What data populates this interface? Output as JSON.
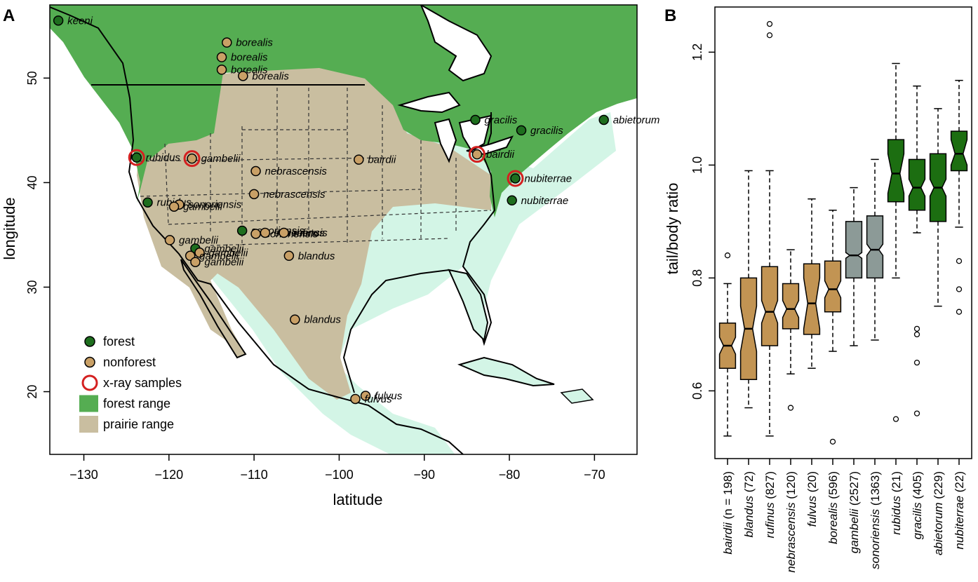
{
  "panels": {
    "a": "A",
    "b": "B"
  },
  "map": {
    "xlabel": "latitude",
    "ylabel": "longitude",
    "x_ticks": [
      -130,
      -120,
      -110,
      -100,
      -90,
      -80,
      -70
    ],
    "x_tick_labels": [
      "−130",
      "−120",
      "−110",
      "−100",
      "−90",
      "−80",
      "−70"
    ],
    "y_ticks": [
      20,
      30,
      40,
      50
    ],
    "xlim": [
      -134,
      -65
    ],
    "ylim": [
      14,
      57
    ],
    "legend": [
      {
        "label": "forest",
        "kind": "forest-dot"
      },
      {
        "label": "nonforest",
        "kind": "nonforest-dot"
      },
      {
        "label": "x-ray samples",
        "kind": "xray-ring"
      },
      {
        "label": "forest range",
        "kind": "forest-range"
      },
      {
        "label": "prairie range",
        "kind": "prairie-range"
      }
    ],
    "colors": {
      "forest_dot": "#1e6e1e",
      "nonforest_dot": "#c9a066",
      "xray": "#d42020",
      "forest_range": "#55ad52",
      "prairie_range": "#c9bea0",
      "other_range": "#d3f5e6"
    },
    "sites": [
      {
        "label": "keeni",
        "lon": -133,
        "lat": 55.5,
        "type": "forest",
        "xray": false
      },
      {
        "label": "borealis",
        "lon": -113.2,
        "lat": 53.4,
        "type": "nonforest",
        "xray": false
      },
      {
        "label": "borealis",
        "lon": -113.8,
        "lat": 52.0,
        "type": "nonforest",
        "xray": false
      },
      {
        "label": "borealis",
        "lon": -113.8,
        "lat": 50.8,
        "type": "nonforest",
        "xray": false
      },
      {
        "label": "borealis",
        "lon": -111.3,
        "lat": 50.2,
        "type": "nonforest",
        "xray": false
      },
      {
        "label": "gracilis",
        "lon": -84.0,
        "lat": 46.0,
        "type": "forest",
        "xray": false
      },
      {
        "label": "gracilis",
        "lon": -78.6,
        "lat": 45.0,
        "type": "forest",
        "xray": false
      },
      {
        "label": "abietorum",
        "lon": -68.9,
        "lat": 46.0,
        "type": "forest",
        "xray": false
      },
      {
        "label": "rubidus",
        "lon": -123.8,
        "lat": 42.4,
        "type": "forest",
        "xray": true
      },
      {
        "label": "gambelii",
        "lon": -117.3,
        "lat": 42.3,
        "type": "nonforest",
        "xray": true
      },
      {
        "label": "bairdii",
        "lon": -97.7,
        "lat": 42.2,
        "type": "nonforest",
        "xray": false
      },
      {
        "label": "bairdii",
        "lon": -83.8,
        "lat": 42.7,
        "type": "nonforest",
        "xray": true
      },
      {
        "label": "nebrascensis",
        "lon": -109.8,
        "lat": 41.1,
        "type": "nonforest",
        "xray": false
      },
      {
        "label": "nebrascensis",
        "lon": -110.0,
        "lat": 38.9,
        "type": "nonforest",
        "xray": false
      },
      {
        "label": "nubiterrae",
        "lon": -79.3,
        "lat": 40.4,
        "type": "forest",
        "xray": true
      },
      {
        "label": "nubiterrae",
        "lon": -79.7,
        "lat": 38.3,
        "type": "forest",
        "xray": false
      },
      {
        "label": "rubidus",
        "lon": -122.5,
        "lat": 38.1,
        "type": "forest",
        "xray": false
      },
      {
        "label": "sonoriensis",
        "lon": -118.8,
        "lat": 37.9,
        "type": "nonforest",
        "xray": false
      },
      {
        "label": "gambelii",
        "lon": -119.4,
        "lat": 37.7,
        "type": "nonforest",
        "xray": false
      },
      {
        "label": "sonoriensis",
        "lon": -111.4,
        "lat": 35.4,
        "type": "forest",
        "xray": false
      },
      {
        "label": "sonoriensis",
        "lon": -109.8,
        "lat": 35.1,
        "type": "nonforest",
        "xray": false
      },
      {
        "label": "sonoriensis",
        "lon": -108.7,
        "lat": 35.2,
        "type": "nonforest",
        "xray": false
      },
      {
        "label": "rufinus",
        "lon": -106.5,
        "lat": 35.2,
        "type": "nonforest",
        "xray": false
      },
      {
        "label": "gambelii",
        "lon": -119.9,
        "lat": 34.5,
        "type": "nonforest",
        "xray": false
      },
      {
        "label": "gambelii",
        "lon": -116.9,
        "lat": 33.7,
        "type": "forest",
        "xray": false
      },
      {
        "label": "gambelii",
        "lon": -116.4,
        "lat": 33.3,
        "type": "nonforest",
        "xray": false
      },
      {
        "label": "gambelii",
        "lon": -117.5,
        "lat": 33.0,
        "type": "nonforest",
        "xray": false
      },
      {
        "label": "gambelii",
        "lon": -116.9,
        "lat": 32.4,
        "type": "nonforest",
        "xray": false
      },
      {
        "label": "blandus",
        "lon": -105.9,
        "lat": 33.0,
        "type": "nonforest",
        "xray": false
      },
      {
        "label": "blandus",
        "lon": -105.2,
        "lat": 26.9,
        "type": "nonforest",
        "xray": false
      },
      {
        "label": "fulvus",
        "lon": -96.9,
        "lat": 19.6,
        "type": "nonforest",
        "xray": false
      },
      {
        "label": "fulvus",
        "lon": -98.1,
        "lat": 19.3,
        "type": "nonforest",
        "xray": false
      }
    ]
  },
  "chart_data": {
    "type": "box",
    "ylabel": "tail/body ratio",
    "ylim": [
      0.48,
      1.28
    ],
    "y_ticks": [
      0.6,
      0.8,
      1.0,
      1.2
    ],
    "y_tick_labels": [
      "0.6",
      "0.8",
      "1.0",
      "1.2"
    ],
    "notched": true,
    "colors": {
      "nonforest": "#c29453",
      "intermediate": "#8c9a97",
      "forest": "#1c6e11"
    },
    "categories": [
      {
        "name": "bairdii",
        "n_text": "(n = 198)",
        "group": "nonforest",
        "lower_whisker": 0.52,
        "q1": 0.64,
        "median": 0.68,
        "q3": 0.72,
        "upper_whisker": 0.79,
        "notch_low": 0.665,
        "notch_high": 0.695,
        "outliers": [
          0.84
        ]
      },
      {
        "name": "blandus",
        "n_text": "(72)",
        "group": "nonforest",
        "lower_whisker": 0.57,
        "q1": 0.62,
        "median": 0.71,
        "q3": 0.8,
        "upper_whisker": 0.99,
        "notch_low": 0.67,
        "notch_high": 0.75,
        "outliers": []
      },
      {
        "name": "rufinus",
        "n_text": "(827)",
        "group": "nonforest",
        "lower_whisker": 0.52,
        "q1": 0.68,
        "median": 0.74,
        "q3": 0.82,
        "upper_whisker": 0.99,
        "notch_low": 0.72,
        "notch_high": 0.76,
        "outliers": [
          1.23,
          1.25
        ]
      },
      {
        "name": "nebrascensis",
        "n_text": "(120)",
        "group": "nonforest",
        "lower_whisker": 0.63,
        "q1": 0.71,
        "median": 0.745,
        "q3": 0.79,
        "upper_whisker": 0.85,
        "notch_low": 0.73,
        "notch_high": 0.76,
        "outliers": [
          0.57
        ]
      },
      {
        "name": "fulvus",
        "n_text": "(20)",
        "group": "nonforest",
        "lower_whisker": 0.64,
        "q1": 0.7,
        "median": 0.755,
        "q3": 0.825,
        "upper_whisker": 0.94,
        "notch_low": 0.71,
        "notch_high": 0.8,
        "outliers": []
      },
      {
        "name": "borealis",
        "n_text": "(596)",
        "group": "nonforest",
        "lower_whisker": 0.67,
        "q1": 0.74,
        "median": 0.78,
        "q3": 0.83,
        "upper_whisker": 0.92,
        "notch_low": 0.765,
        "notch_high": 0.795,
        "outliers": [
          0.51
        ]
      },
      {
        "name": "gambelii",
        "n_text": "(2527)",
        "group": "intermediate",
        "lower_whisker": 0.68,
        "q1": 0.8,
        "median": 0.84,
        "q3": 0.9,
        "upper_whisker": 0.96,
        "notch_low": 0.835,
        "notch_high": 0.845,
        "outliers": []
      },
      {
        "name": "sonoriensis",
        "n_text": "(1363)",
        "group": "intermediate",
        "lower_whisker": 0.69,
        "q1": 0.8,
        "median": 0.85,
        "q3": 0.91,
        "upper_whisker": 1.01,
        "notch_low": 0.84,
        "notch_high": 0.86,
        "outliers": []
      },
      {
        "name": "rubidus",
        "n_text": "(21)",
        "group": "forest",
        "lower_whisker": 0.8,
        "q1": 0.935,
        "median": 0.985,
        "q3": 1.045,
        "upper_whisker": 1.18,
        "notch_low": 0.95,
        "notch_high": 1.02,
        "outliers": [
          0.55
        ]
      },
      {
        "name": "gracilis",
        "n_text": "(405)",
        "group": "forest",
        "lower_whisker": 0.88,
        "q1": 0.92,
        "median": 0.96,
        "q3": 1.01,
        "upper_whisker": 1.14,
        "notch_low": 0.945,
        "notch_high": 0.975,
        "outliers": [
          0.71,
          0.7,
          0.65,
          0.56
        ]
      },
      {
        "name": "abietorum",
        "n_text": "(229)",
        "group": "forest",
        "lower_whisker": 0.75,
        "q1": 0.9,
        "median": 0.96,
        "q3": 1.02,
        "upper_whisker": 1.1,
        "notch_low": 0.945,
        "notch_high": 0.975,
        "outliers": []
      },
      {
        "name": "nubiterrae",
        "n_text": "(22)",
        "group": "forest",
        "lower_whisker": 0.89,
        "q1": 0.99,
        "median": 1.02,
        "q3": 1.06,
        "upper_whisker": 1.15,
        "notch_low": 1.0,
        "notch_high": 1.045,
        "outliers": [
          0.83,
          0.78,
          0.74
        ]
      }
    ]
  }
}
